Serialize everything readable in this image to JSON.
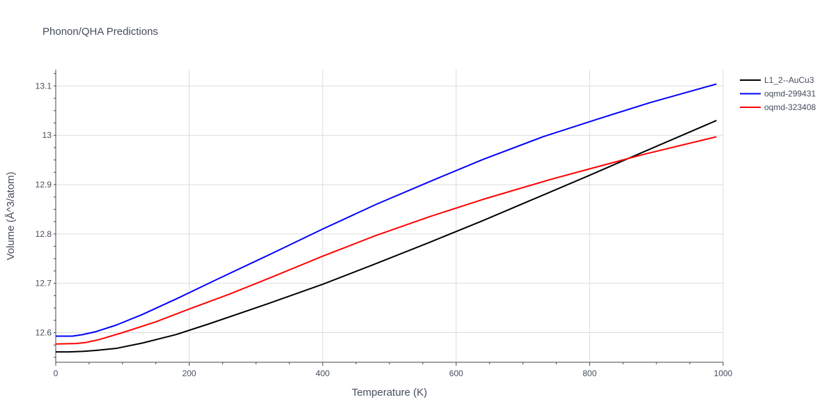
{
  "chart_data": {
    "type": "line",
    "title": "Phonon/QHA Predictions",
    "xlabel": "Temperature (K)",
    "ylabel": "Volume (Å^3/atom)",
    "xlim": [
      0,
      1000
    ],
    "ylim": [
      12.54,
      13.133
    ],
    "xticks": [
      0,
      200,
      400,
      600,
      800,
      1000
    ],
    "yticks": [
      12.6,
      12.7,
      12.8,
      12.9,
      13.0,
      13.1
    ],
    "ytick_labels": [
      "12.6",
      "12.7",
      "12.8",
      "12.9",
      "13",
      "13.1"
    ],
    "grid": true,
    "legend_position": "top-right",
    "series": [
      {
        "name": "L1_2--AuCu3",
        "color": "#000000",
        "x": [
          0,
          20,
          40,
          60,
          90,
          130,
          180,
          230,
          310,
          400,
          480,
          560,
          640,
          720,
          800,
          880,
          990
        ],
        "y": [
          12.561,
          12.561,
          12.562,
          12.564,
          12.568,
          12.579,
          12.596,
          12.618,
          12.655,
          12.698,
          12.74,
          12.783,
          12.827,
          12.873,
          12.919,
          12.966,
          13.03
        ]
      },
      {
        "name": "oqmd-299431",
        "color": "#0000ff",
        "x": [
          0,
          25,
          40,
          60,
          90,
          130,
          180,
          240,
          320,
          400,
          480,
          560,
          640,
          730,
          810,
          890,
          990
        ],
        "y": [
          12.593,
          12.593,
          12.596,
          12.602,
          12.615,
          12.637,
          12.668,
          12.707,
          12.758,
          12.81,
          12.86,
          12.906,
          12.951,
          12.997,
          13.032,
          13.066,
          13.104
        ]
      },
      {
        "name": "oqmd-323408",
        "color": "#ff0000",
        "x": [
          0,
          30,
          45,
          65,
          100,
          150,
          200,
          260,
          330,
          400,
          480,
          560,
          640,
          740,
          800,
          880,
          990
        ],
        "y": [
          12.577,
          12.578,
          12.58,
          12.586,
          12.6,
          12.622,
          12.648,
          12.678,
          12.716,
          12.755,
          12.797,
          12.835,
          12.87,
          12.91,
          12.932,
          12.961,
          12.997
        ]
      }
    ]
  }
}
